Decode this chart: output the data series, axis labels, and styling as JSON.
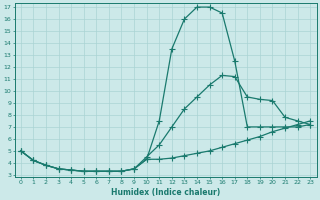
{
  "xlabel": "Humidex (Indice chaleur)",
  "xlim": [
    -0.5,
    23.5
  ],
  "ylim": [
    2.8,
    17.3
  ],
  "yticks": [
    3,
    4,
    5,
    6,
    7,
    8,
    9,
    10,
    11,
    12,
    13,
    14,
    15,
    16,
    17
  ],
  "xticks": [
    0,
    1,
    2,
    3,
    4,
    5,
    6,
    7,
    8,
    9,
    10,
    11,
    12,
    13,
    14,
    15,
    16,
    17,
    18,
    19,
    20,
    21,
    22,
    23
  ],
  "bg_color": "#cce9e9",
  "grid_color": "#aad4d4",
  "line_color": "#1a7a6e",
  "line_high_x": [
    0,
    1,
    2,
    3,
    4,
    5,
    6,
    7,
    8,
    9,
    10,
    11,
    12,
    13,
    14,
    15,
    16,
    17,
    18,
    19,
    20,
    21,
    22,
    23
  ],
  "line_high_y": [
    5.0,
    4.2,
    3.8,
    3.5,
    3.4,
    3.3,
    3.3,
    3.3,
    3.3,
    3.5,
    4.3,
    7.5,
    13.5,
    16.0,
    17.0,
    17.0,
    16.5,
    12.5,
    7.0,
    7.0,
    7.0,
    7.0,
    7.0,
    7.2
  ],
  "line_mid_x": [
    0,
    1,
    2,
    3,
    4,
    5,
    6,
    7,
    8,
    9,
    10,
    11,
    12,
    13,
    14,
    15,
    16,
    17,
    18,
    19,
    20,
    21,
    22,
    23
  ],
  "line_mid_y": [
    5.0,
    4.2,
    3.8,
    3.5,
    3.4,
    3.3,
    3.3,
    3.3,
    3.3,
    3.5,
    4.5,
    5.5,
    7.0,
    8.5,
    9.5,
    10.5,
    11.3,
    11.2,
    9.5,
    9.3,
    9.2,
    7.8,
    7.5,
    7.2
  ],
  "line_low_x": [
    0,
    1,
    2,
    3,
    4,
    5,
    6,
    7,
    8,
    9,
    10,
    11,
    12,
    13,
    14,
    15,
    16,
    17,
    18,
    19,
    20,
    21,
    22,
    23
  ],
  "line_low_y": [
    5.0,
    4.2,
    3.8,
    3.5,
    3.4,
    3.3,
    3.3,
    3.3,
    3.3,
    3.5,
    4.3,
    4.3,
    4.4,
    4.6,
    4.8,
    5.0,
    5.3,
    5.6,
    5.9,
    6.2,
    6.6,
    6.9,
    7.2,
    7.5
  ]
}
